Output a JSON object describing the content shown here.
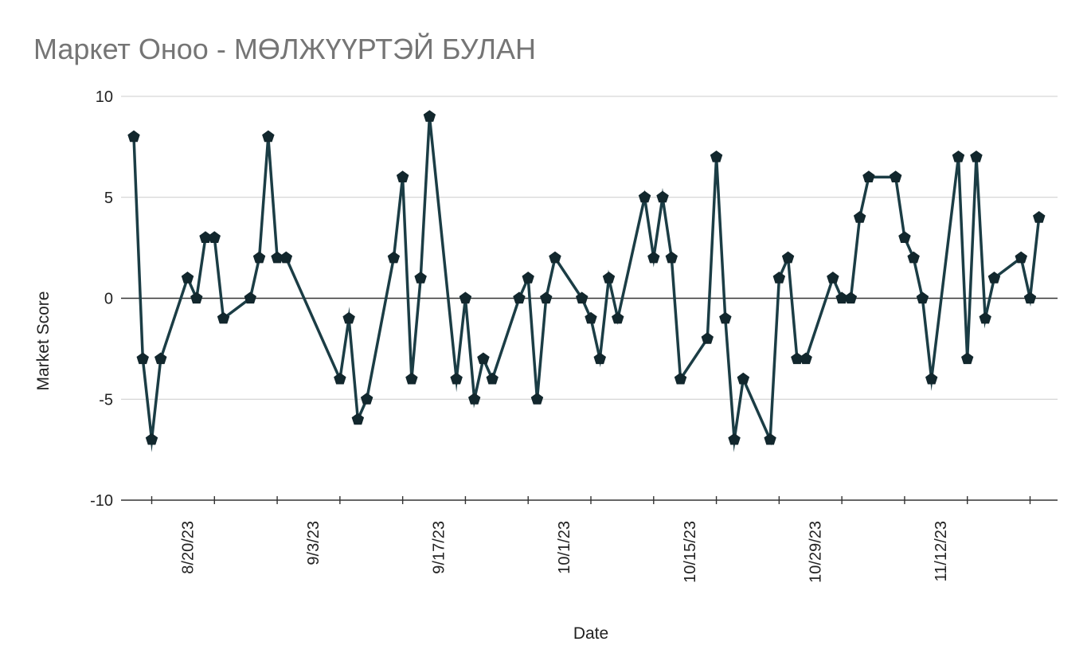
{
  "chart_data": {
    "type": "line",
    "title": "Маркет Оноо - МӨЛЖҮҮРТЭЙ БУЛАН",
    "xlabel": "Date",
    "ylabel": "Market Score",
    "ylim": [
      -10,
      10
    ],
    "yticks": [
      "10",
      "5",
      "0",
      "-5",
      "-10"
    ],
    "xlim": [
      "2023-08-14",
      "2023-11-24"
    ],
    "xticks": [
      {
        "date": "2023-08-20",
        "label": "8/20/23"
      },
      {
        "date": "2023-09-03",
        "label": "9/3/23"
      },
      {
        "date": "2023-09-17",
        "label": "9/17/23"
      },
      {
        "date": "2023-10-01",
        "label": "10/1/23"
      },
      {
        "date": "2023-10-15",
        "label": "10/15/23"
      },
      {
        "date": "2023-10-29",
        "label": "10/29/23"
      },
      {
        "date": "2023-11-12",
        "label": "11/12/23"
      }
    ],
    "grid": true,
    "legend": "none",
    "line_color": "#1b3d45",
    "marker": "pentagon",
    "series": [
      {
        "x": [
          "2023-08-14",
          "2023-08-15",
          "2023-08-16",
          "2023-08-17",
          "2023-08-20",
          "2023-08-21",
          "2023-08-22",
          "2023-08-23",
          "2023-08-24",
          "2023-08-27",
          "2023-08-28",
          "2023-08-29",
          "2023-08-30",
          "2023-08-31",
          "2023-09-06",
          "2023-09-07",
          "2023-09-08",
          "2023-09-09",
          "2023-09-12",
          "2023-09-13",
          "2023-09-14",
          "2023-09-15",
          "2023-09-16",
          "2023-09-19",
          "2023-09-20",
          "2023-09-21",
          "2023-09-22",
          "2023-09-23",
          "2023-09-26",
          "2023-09-27",
          "2023-09-28",
          "2023-09-29",
          "2023-09-30",
          "2023-10-03",
          "2023-10-04",
          "2023-10-05",
          "2023-10-06",
          "2023-10-07",
          "2023-10-10",
          "2023-10-11",
          "2023-10-12",
          "2023-10-13",
          "2023-10-14",
          "2023-10-17",
          "2023-10-18",
          "2023-10-19",
          "2023-10-20",
          "2023-10-21",
          "2023-10-24",
          "2023-10-25",
          "2023-10-26",
          "2023-10-27",
          "2023-10-28",
          "2023-10-31",
          "2023-11-01",
          "2023-11-02",
          "2023-11-03",
          "2023-11-04",
          "2023-11-07",
          "2023-11-08",
          "2023-11-09",
          "2023-11-10",
          "2023-11-11",
          "2023-11-14",
          "2023-11-15",
          "2023-11-16",
          "2023-11-17",
          "2023-11-18",
          "2023-11-21",
          "2023-11-22",
          "2023-11-23"
        ],
        "y": [
          8,
          -3,
          -7,
          -3,
          1,
          0,
          3,
          3,
          -1,
          0,
          2,
          8,
          2,
          2,
          -4,
          -1,
          -6,
          -5,
          2,
          6,
          -4,
          1,
          9,
          -4,
          0,
          -5,
          -3,
          -4,
          0,
          1,
          -5,
          0,
          2,
          0,
          -1,
          -3,
          1,
          -1,
          5,
          2,
          5,
          2,
          -4,
          -2,
          7,
          -1,
          -7,
          -4,
          -7,
          1,
          2,
          -3,
          -3,
          1,
          0,
          0,
          4,
          6,
          6,
          3,
          2,
          0,
          -4,
          7,
          -3,
          7,
          -1,
          1,
          2,
          0,
          4
        ]
      }
    ]
  }
}
